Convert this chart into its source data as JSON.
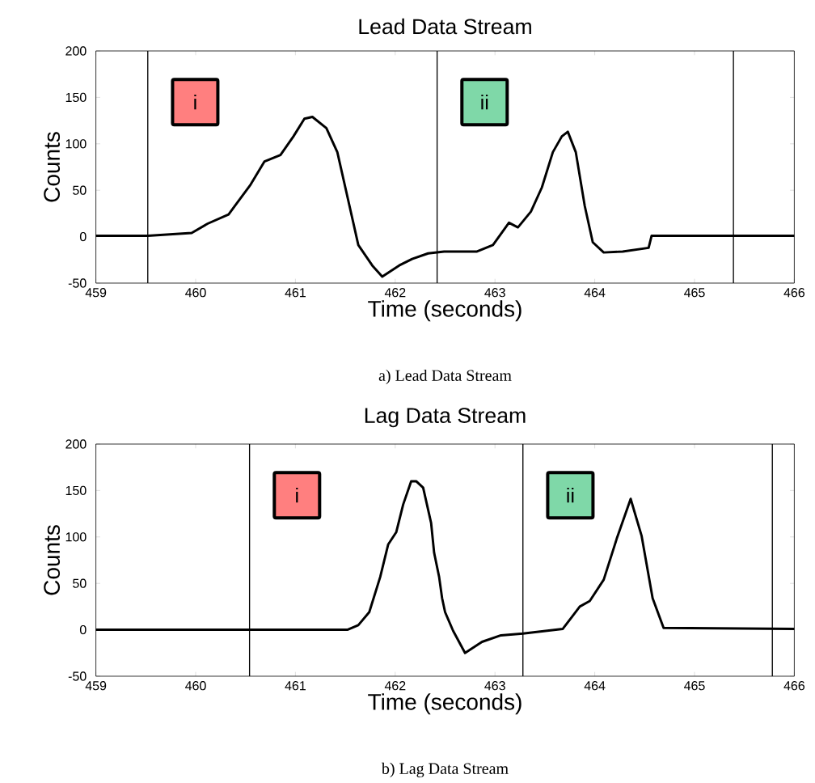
{
  "chart_data": [
    {
      "type": "line",
      "title": "Lead Data Stream",
      "xlabel": "Time (seconds)",
      "ylabel": "Counts",
      "xlim": [
        459,
        466
      ],
      "ylim": [
        -50,
        200
      ],
      "xticks": [
        459,
        460,
        461,
        462,
        463,
        464,
        465,
        466
      ],
      "yticks": [
        -50,
        0,
        50,
        100,
        150,
        200
      ],
      "series": [
        {
          "color": "#000000",
          "x": [
            459.0,
            459.52,
            459.96,
            460.12,
            460.33,
            460.55,
            460.69,
            460.85,
            460.98,
            461.09,
            461.17,
            461.31,
            461.42,
            461.5,
            461.58,
            461.63,
            461.77,
            461.87,
            462.04,
            462.17,
            462.33,
            462.49,
            462.82,
            462.98,
            463.14,
            463.23,
            463.36,
            463.47,
            463.58,
            463.67,
            463.73,
            463.81,
            463.9,
            463.98,
            464.09,
            464.28,
            464.54,
            464.57,
            465.04,
            466.0
          ],
          "values": [
            1,
            1,
            4,
            14,
            24,
            56,
            81,
            88,
            108,
            127,
            129,
            117,
            91,
            53,
            15,
            -9,
            -31,
            -43,
            -31,
            -24,
            -18,
            -16,
            -16,
            -9,
            15,
            10,
            27,
            53,
            91,
            108,
            113,
            91,
            33,
            -6,
            -17,
            -16,
            -12,
            1,
            1,
            1
          ]
        }
      ],
      "ref_lines": [
        {
          "axis": "x",
          "value": 459.52,
          "color": "#000000"
        },
        {
          "axis": "x",
          "value": 462.42,
          "color": "#000000"
        },
        {
          "axis": "x",
          "value": 465.39,
          "color": "#000000"
        }
      ],
      "annotations": [
        "i",
        "ii",
        "a) Lead Data Stream"
      ]
    },
    {
      "type": "line",
      "title": "Lag Data Stream",
      "xlabel": "Time (seconds)",
      "ylabel": "Counts",
      "xlim": [
        459,
        466
      ],
      "ylim": [
        -50,
        200
      ],
      "xticks": [
        459,
        460,
        461,
        462,
        463,
        464,
        465,
        466
      ],
      "yticks": [
        -50,
        0,
        50,
        100,
        150,
        200
      ],
      "series": [
        {
          "color": "#000000",
          "x": [
            459.0,
            461.52,
            461.63,
            461.74,
            461.85,
            461.93,
            462.01,
            462.08,
            462.16,
            462.21,
            462.28,
            462.36,
            462.39,
            462.44,
            462.47,
            462.5,
            462.58,
            462.7,
            462.87,
            463.06,
            463.28,
            463.68,
            463.85,
            463.95,
            464.09,
            464.22,
            464.36,
            464.47,
            464.58,
            464.69,
            466.0
          ],
          "values": [
            0,
            0,
            5,
            19,
            57,
            92,
            105,
            135,
            160,
            160,
            153,
            115,
            83,
            57,
            34,
            19,
            -1,
            -25,
            -13,
            -6,
            -4,
            1,
            25,
            31,
            54,
            98,
            141,
            101,
            34,
            2,
            1
          ]
        }
      ],
      "ref_lines": [
        {
          "axis": "x",
          "value": 460.54,
          "color": "#000000"
        },
        {
          "axis": "x",
          "value": 463.28,
          "color": "#000000"
        },
        {
          "axis": "x",
          "value": 465.78,
          "color": "#000000"
        }
      ],
      "annotations": [
        "i",
        "ii",
        "b) Lag Data Stream"
      ]
    }
  ]
}
